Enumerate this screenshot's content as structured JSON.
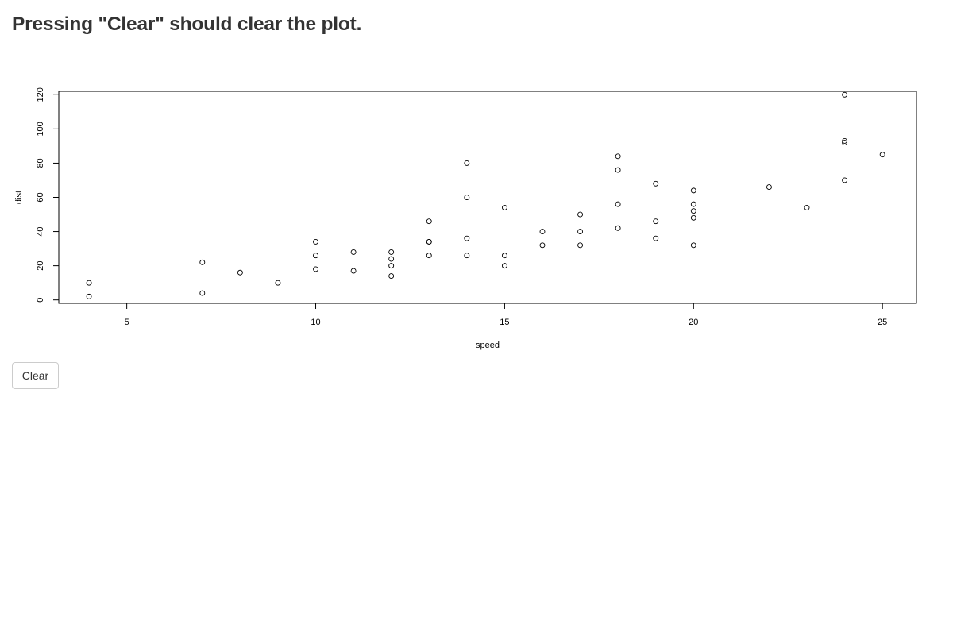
{
  "page": {
    "title": "Pressing \"Clear\" should clear the plot."
  },
  "controls": {
    "clear_label": "Clear"
  },
  "chart_data": {
    "type": "scatter",
    "title": "",
    "xlabel": "speed",
    "ylabel": "dist",
    "xlim": [
      3.2,
      25.9
    ],
    "ylim": [
      -2,
      122
    ],
    "xticks": [
      5,
      10,
      15,
      20,
      25
    ],
    "yticks": [
      0,
      20,
      40,
      60,
      80,
      100,
      120
    ],
    "grid": false,
    "marker": "open-circle",
    "color": "#000000",
    "points": [
      [
        4,
        2
      ],
      [
        4,
        10
      ],
      [
        7,
        4
      ],
      [
        7,
        22
      ],
      [
        8,
        16
      ],
      [
        9,
        10
      ],
      [
        10,
        18
      ],
      [
        10,
        26
      ],
      [
        10,
        34
      ],
      [
        11,
        17
      ],
      [
        11,
        28
      ],
      [
        12,
        14
      ],
      [
        12,
        20
      ],
      [
        12,
        24
      ],
      [
        12,
        28
      ],
      [
        13,
        26
      ],
      [
        13,
        34
      ],
      [
        13,
        34
      ],
      [
        13,
        46
      ],
      [
        14,
        26
      ],
      [
        14,
        36
      ],
      [
        14,
        60
      ],
      [
        14,
        80
      ],
      [
        15,
        20
      ],
      [
        15,
        26
      ],
      [
        15,
        54
      ],
      [
        16,
        32
      ],
      [
        16,
        40
      ],
      [
        17,
        32
      ],
      [
        17,
        40
      ],
      [
        17,
        50
      ],
      [
        18,
        42
      ],
      [
        18,
        56
      ],
      [
        18,
        76
      ],
      [
        18,
        84
      ],
      [
        19,
        36
      ],
      [
        19,
        46
      ],
      [
        19,
        68
      ],
      [
        20,
        32
      ],
      [
        20,
        48
      ],
      [
        20,
        52
      ],
      [
        20,
        56
      ],
      [
        20,
        64
      ],
      [
        22,
        66
      ],
      [
        23,
        54
      ],
      [
        24,
        70
      ],
      [
        24,
        92
      ],
      [
        24,
        93
      ],
      [
        24,
        120
      ],
      [
        25,
        85
      ]
    ]
  }
}
